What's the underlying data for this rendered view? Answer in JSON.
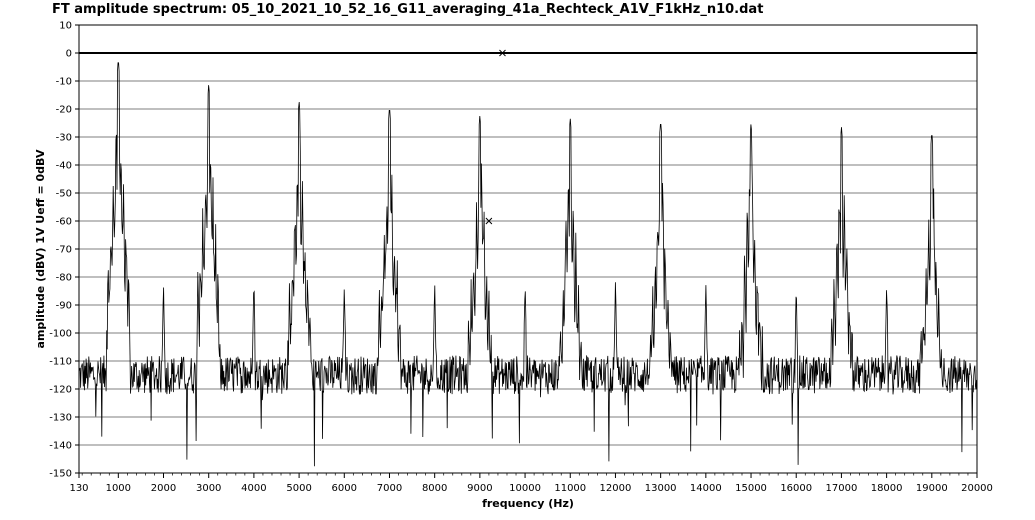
{
  "chart_data": {
    "type": "line",
    "title": "FT amplitude spectrum: 05_10_2021_10_52_16_G11_averaging_41a_Rechteck_A1V_F1kHz_n10.dat",
    "xlabel": "frequency (Hz)",
    "ylabel": "amplitude (dBV) 1V Ueff = 0dBV",
    "xlim": [
      130,
      20000
    ],
    "ylim": [
      -150,
      10
    ],
    "grid": "horizontal",
    "x_ticks": [
      130,
      1000,
      2000,
      3000,
      4000,
      5000,
      6000,
      7000,
      8000,
      9000,
      10000,
      11000,
      12000,
      13000,
      14000,
      15000,
      16000,
      17000,
      18000,
      19000,
      20000
    ],
    "y_ticks": [
      10,
      0,
      -10,
      -20,
      -30,
      -40,
      -50,
      -60,
      -70,
      -80,
      -90,
      -100,
      -110,
      -120,
      -130,
      -140,
      -150
    ],
    "reference_line": 0,
    "colors": {
      "line": "#000000",
      "grid": "#000000",
      "background": "#ffffff"
    },
    "harmonic_peaks": {
      "x": [
        1000,
        3000,
        5000,
        7000,
        9000,
        11000,
        13000,
        15000,
        17000,
        19000
      ],
      "y": [
        -2,
        -11,
        -17,
        -19,
        -22,
        -23,
        -24,
        -25,
        -26,
        -28
      ]
    },
    "even_harmonic_peaks": {
      "x": [
        2000,
        4000,
        6000,
        8000,
        10000,
        12000,
        14000,
        16000,
        18000
      ],
      "y": [
        -81,
        -81,
        -81,
        -81,
        -81,
        -81,
        -81,
        -81,
        -81
      ]
    },
    "markers": [
      {
        "x": 9500,
        "y": 0,
        "symbol": "x"
      },
      {
        "x": 9200,
        "y": -60,
        "symbol": "x"
      }
    ],
    "noise_floor_dBV": -115
  }
}
